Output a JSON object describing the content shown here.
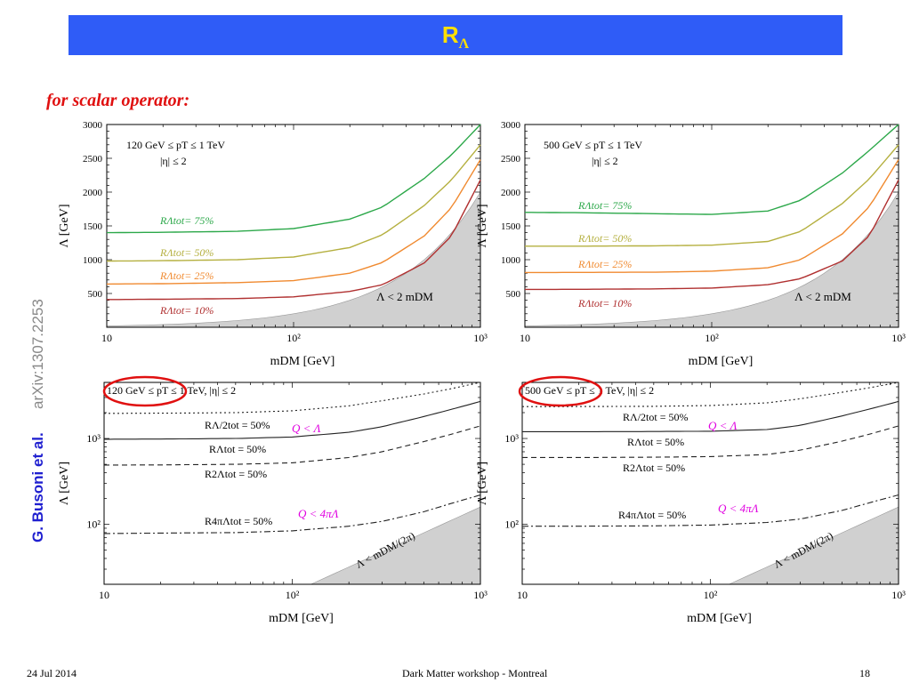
{
  "slide": {
    "title_main": "R",
    "title_sub": "Λ",
    "subheading": "for scalar operator:",
    "side_author": "G. Busoni et al.",
    "side_arxiv": "arXiv:1307.2253",
    "footer_date": "24 Jul 2014",
    "footer_center": "Dark Matter workshop - Montreal",
    "footer_page": "18",
    "colors": {
      "title_bar": "#2f5cf7",
      "title_text": "#ffe000",
      "subheading": "#e01010",
      "author": "#2020d0",
      "highlight": "#e01010",
      "annotation": "#e000e0"
    }
  },
  "chart_data": [
    {
      "type": "line",
      "xscale": "log",
      "xlim": [
        10,
        1000
      ],
      "ylim": [
        0,
        3000
      ],
      "xlabel": "mDM [GeV]",
      "ylabel": "Λ [GeV]",
      "xticks": [
        "10",
        "10²",
        "10³"
      ],
      "yticks": [
        "500",
        "1000",
        "1500",
        "2000",
        "2500",
        "3000"
      ],
      "cuts": [
        "120 GeV ≤ pT ≤ 1 TeV",
        "|η| ≤ 2"
      ],
      "excluded_label": "Λ < 2 mDM",
      "series": [
        {
          "name": "RΛtot= 75%",
          "color": "#2ca84a",
          "x": [
            10,
            20,
            50,
            100,
            200,
            300,
            500,
            700,
            1000
          ],
          "y": [
            1400,
            1405,
            1420,
            1460,
            1600,
            1780,
            2200,
            2550,
            3000
          ]
        },
        {
          "name": "RΛtot= 50%",
          "color": "#b5b040",
          "x": [
            10,
            20,
            50,
            100,
            200,
            300,
            500,
            700,
            1000
          ],
          "y": [
            980,
            985,
            1000,
            1040,
            1180,
            1370,
            1800,
            2180,
            2700
          ]
        },
        {
          "name": "RΛtot= 25%",
          "color": "#f08a30",
          "x": [
            10,
            20,
            50,
            100,
            200,
            300,
            500,
            700,
            1000
          ],
          "y": [
            640,
            645,
            660,
            690,
            800,
            960,
            1350,
            1770,
            2480
          ]
        },
        {
          "name": "RΛtot= 10%",
          "color": "#b03030",
          "x": [
            10,
            20,
            50,
            100,
            200,
            300,
            500,
            700,
            1000
          ],
          "y": [
            410,
            415,
            425,
            450,
            530,
            630,
            950,
            1350,
            2180
          ]
        }
      ],
      "series_labels": [
        "RΛtot= 75%",
        "RΛtot= 50%",
        "RΛtot= 25%",
        "RΛtot= 10%"
      ]
    },
    {
      "type": "line",
      "xscale": "log",
      "xlim": [
        10,
        1000
      ],
      "ylim": [
        0,
        3000
      ],
      "xlabel": "mDM [GeV]",
      "ylabel": "Λ [GeV]",
      "xticks": [
        "10",
        "10²",
        "10³"
      ],
      "yticks": [
        "500",
        "1000",
        "1500",
        "2000",
        "2500",
        "3000"
      ],
      "cuts": [
        "500 GeV ≤ pT ≤ 1 TeV",
        "|η| ≤ 2"
      ],
      "excluded_label": "Λ < 2 mDM",
      "series": [
        {
          "name": "RΛtot= 75%",
          "color": "#2ca84a",
          "x": [
            10,
            20,
            50,
            100,
            200,
            300,
            500,
            700,
            1000
          ],
          "y": [
            1700,
            1695,
            1680,
            1670,
            1720,
            1880,
            2280,
            2620,
            3000
          ]
        },
        {
          "name": "RΛtot= 50%",
          "color": "#b5b040",
          "x": [
            10,
            20,
            50,
            100,
            200,
            300,
            500,
            700,
            1000
          ],
          "y": [
            1200,
            1200,
            1205,
            1215,
            1270,
            1420,
            1830,
            2200,
            2700
          ]
        },
        {
          "name": "RΛtot= 25%",
          "color": "#f08a30",
          "x": [
            10,
            20,
            50,
            100,
            200,
            300,
            500,
            700,
            1000
          ],
          "y": [
            810,
            812,
            815,
            830,
            880,
            1000,
            1380,
            1790,
            2480
          ]
        },
        {
          "name": "RΛtot= 10%",
          "color": "#b03030",
          "x": [
            10,
            20,
            50,
            100,
            200,
            300,
            500,
            700,
            1000
          ],
          "y": [
            560,
            562,
            568,
            580,
            630,
            720,
            980,
            1360,
            2180
          ]
        }
      ],
      "series_labels": [
        "RΛtot= 75%",
        "RΛtot= 50%",
        "RΛtot= 25%",
        "RΛtot= 10%"
      ]
    },
    {
      "type": "line",
      "xscale": "log",
      "yscale": "log",
      "xlim": [
        10,
        1000
      ],
      "ylim": [
        20,
        4500
      ],
      "xlabel": "mDM [GeV]",
      "ylabel": "Λ [GeV]",
      "xticks": [
        "10",
        "10²",
        "10³"
      ],
      "yticks": [
        "10²",
        "10³"
      ],
      "cuts": [
        "120 GeV ≤ pT ≤ 1 TeV,  |η| ≤ 2"
      ],
      "excluded_label": "Λ < mDM/(2π)",
      "annotations": [
        "Q < Λ",
        "Q < 4πΛ"
      ],
      "series": [
        {
          "name": "RΛ/2tot = 50%",
          "style": "dotted",
          "x": [
            10,
            20,
            50,
            100,
            200,
            300,
            500,
            700,
            1000
          ],
          "y": [
            1960,
            1970,
            2000,
            2100,
            2400,
            2750,
            3300,
            3800,
            4500
          ]
        },
        {
          "name": "RΛtot = 50%",
          "style": "solid",
          "x": [
            10,
            20,
            50,
            100,
            200,
            300,
            500,
            700,
            1000
          ],
          "y": [
            980,
            985,
            1000,
            1040,
            1180,
            1370,
            1800,
            2180,
            2700
          ]
        },
        {
          "name": "R2Λtot = 50%",
          "style": "dashed",
          "x": [
            10,
            20,
            50,
            100,
            200,
            300,
            500,
            700,
            1000
          ],
          "y": [
            490,
            492,
            500,
            520,
            600,
            700,
            920,
            1120,
            1400
          ]
        },
        {
          "name": "R4πΛtot = 50%",
          "style": "dashdot",
          "x": [
            10,
            20,
            50,
            100,
            200,
            300,
            500,
            700,
            1000
          ],
          "y": [
            78,
            79,
            80,
            84,
            95,
            108,
            140,
            175,
            220
          ]
        }
      ],
      "series_labels": [
        "RΛ/2tot = 50%",
        "RΛtot = 50%",
        "R2Λtot = 50%",
        "R4πΛtot = 50%"
      ]
    },
    {
      "type": "line",
      "xscale": "log",
      "yscale": "log",
      "xlim": [
        10,
        1000
      ],
      "ylim": [
        20,
        4500
      ],
      "xlabel": "mDM [GeV]",
      "ylabel": "Λ [GeV]",
      "xticks": [
        "10",
        "10²",
        "10³"
      ],
      "yticks": [
        "10²",
        "10³"
      ],
      "cuts": [
        "500 GeV ≤ pT ≤ 1 TeV,  |η| ≤ 2"
      ],
      "excluded_label": "Λ < mDM/(2π)",
      "annotations": [
        "Q < Λ",
        "Q < 4πΛ"
      ],
      "series": [
        {
          "name": "RΛ/2tot = 50%",
          "style": "dotted",
          "x": [
            10,
            20,
            50,
            100,
            200,
            300,
            500,
            700,
            1000
          ],
          "y": [
            2350,
            2355,
            2370,
            2420,
            2600,
            2900,
            3450,
            3900,
            4500
          ]
        },
        {
          "name": "RΛtot = 50%",
          "style": "solid",
          "x": [
            10,
            20,
            50,
            100,
            200,
            300,
            500,
            700,
            1000
          ],
          "y": [
            1200,
            1200,
            1205,
            1215,
            1270,
            1420,
            1830,
            2200,
            2700
          ]
        },
        {
          "name": "R2Λtot = 50%",
          "style": "dashed",
          "x": [
            10,
            20,
            50,
            100,
            200,
            300,
            500,
            700,
            1000
          ],
          "y": [
            600,
            600,
            605,
            615,
            650,
            730,
            930,
            1120,
            1400
          ]
        },
        {
          "name": "R4πΛtot = 50%",
          "style": "dashdot",
          "x": [
            10,
            20,
            50,
            100,
            200,
            300,
            500,
            700,
            1000
          ],
          "y": [
            95,
            95,
            96,
            98,
            105,
            115,
            145,
            178,
            220
          ]
        }
      ],
      "series_labels": [
        "RΛ/2tot = 50%",
        "RΛtot = 50%",
        "R2Λtot = 50%",
        "R4πΛtot = 50%"
      ]
    }
  ]
}
